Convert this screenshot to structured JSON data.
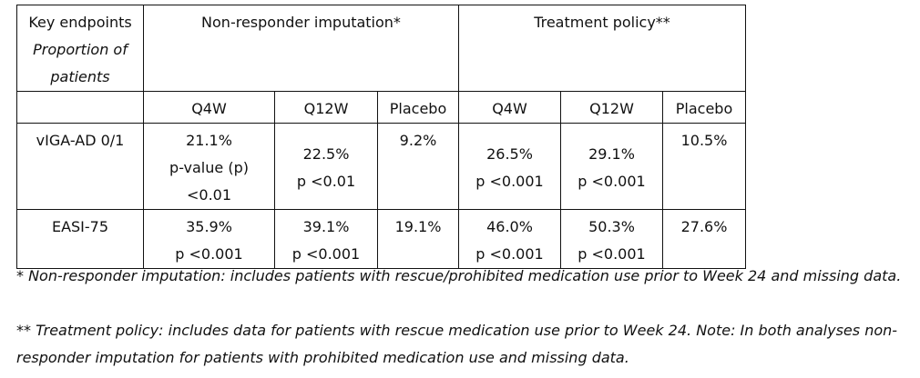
{
  "table": {
    "header": {
      "key_endpoints": "Key endpoints",
      "proportion": "Proportion of patients",
      "group1": "Non-responder imputation*",
      "group2": "Treatment policy**"
    },
    "subheaders": [
      "Q4W",
      "Q12W",
      "Placebo",
      "Q4W",
      "Q12W",
      "Placebo"
    ],
    "rows": [
      {
        "label": "vIGA-AD 0/1",
        "cells": [
          [
            "21.1%",
            "p-value (p)",
            "<0.01"
          ],
          [
            "22.5%",
            "p <0.01"
          ],
          [
            "9.2%"
          ],
          [
            "26.5%",
            "p <0.001"
          ],
          [
            "29.1%",
            "p <0.001"
          ],
          [
            "10.5%"
          ]
        ]
      },
      {
        "label": "EASI-75",
        "cells": [
          [
            "35.9%",
            "p <0.001"
          ],
          [
            "39.1%",
            "p <0.001"
          ],
          [
            "19.1%"
          ],
          [
            "46.0%",
            "p <0.001"
          ],
          [
            "50.3%",
            "p <0.001"
          ],
          [
            "27.6%"
          ]
        ]
      }
    ]
  },
  "footnotes": [
    "* Non-responder imputation: includes patients with rescue/prohibited medication use prior to Week 24 and missing data.",
    "** Treatment policy: includes data for patients with rescue medication use prior to Week 24. Note: In both analyses non-responder imputation for patients with prohibited medication use and missing data."
  ]
}
